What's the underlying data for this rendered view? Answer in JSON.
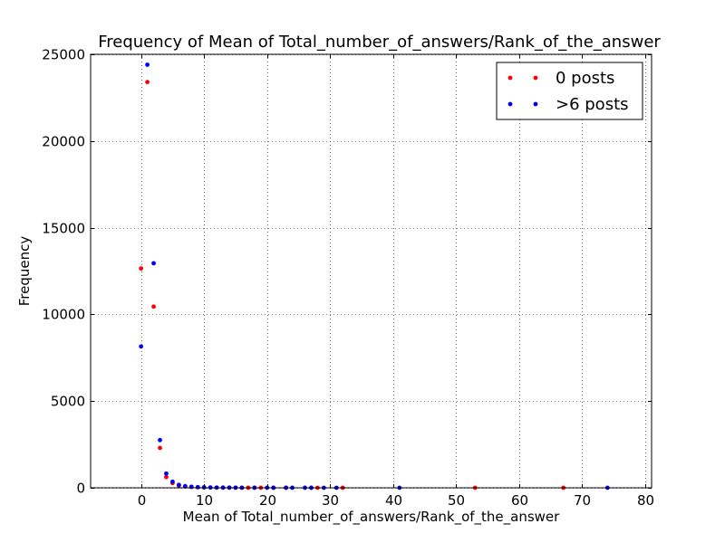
{
  "chart_data": {
    "type": "scatter",
    "title": "Frequency of Mean of Total_number_of_answers/Rank_of_the_answer",
    "xlabel": "Mean of Total_number_of_answers/Rank_of_the_answer",
    "ylabel": "Frequency",
    "xlim": [
      -8,
      81
    ],
    "ylim": [
      0,
      25000
    ],
    "xticks": [
      0,
      10,
      20,
      30,
      40,
      50,
      60,
      70,
      80
    ],
    "yticks": [
      0,
      5000,
      10000,
      15000,
      20000,
      25000
    ],
    "grid": true,
    "grid_style": "dotted",
    "legend_position": "top-right",
    "series": [
      {
        "name": "0 posts",
        "color": "#ff0000",
        "x": [
          0,
          1,
          2,
          3,
          4,
          5,
          6,
          7,
          8,
          9,
          10,
          11,
          12,
          13,
          14,
          15,
          16,
          17,
          18,
          19,
          21,
          23,
          27,
          28,
          32,
          53,
          67
        ],
        "y": [
          12650,
          23400,
          10450,
          2300,
          620,
          270,
          130,
          70,
          45,
          30,
          20,
          15,
          12,
          10,
          8,
          6,
          5,
          4,
          3,
          3,
          2,
          2,
          2,
          1,
          1,
          1,
          1
        ]
      },
      {
        "name": ">6 posts",
        "color": "#0000ff",
        "x": [
          0,
          1,
          2,
          3,
          4,
          5,
          6,
          7,
          8,
          9,
          10,
          11,
          12,
          13,
          14,
          15,
          16,
          18,
          20,
          21,
          23,
          24,
          26,
          27,
          29,
          31,
          41,
          74
        ],
        "y": [
          8150,
          24400,
          12950,
          2750,
          820,
          350,
          170,
          95,
          60,
          40,
          28,
          20,
          15,
          12,
          10,
          8,
          6,
          5,
          4,
          3,
          3,
          2,
          2,
          2,
          1,
          1,
          1,
          1
        ]
      }
    ]
  }
}
